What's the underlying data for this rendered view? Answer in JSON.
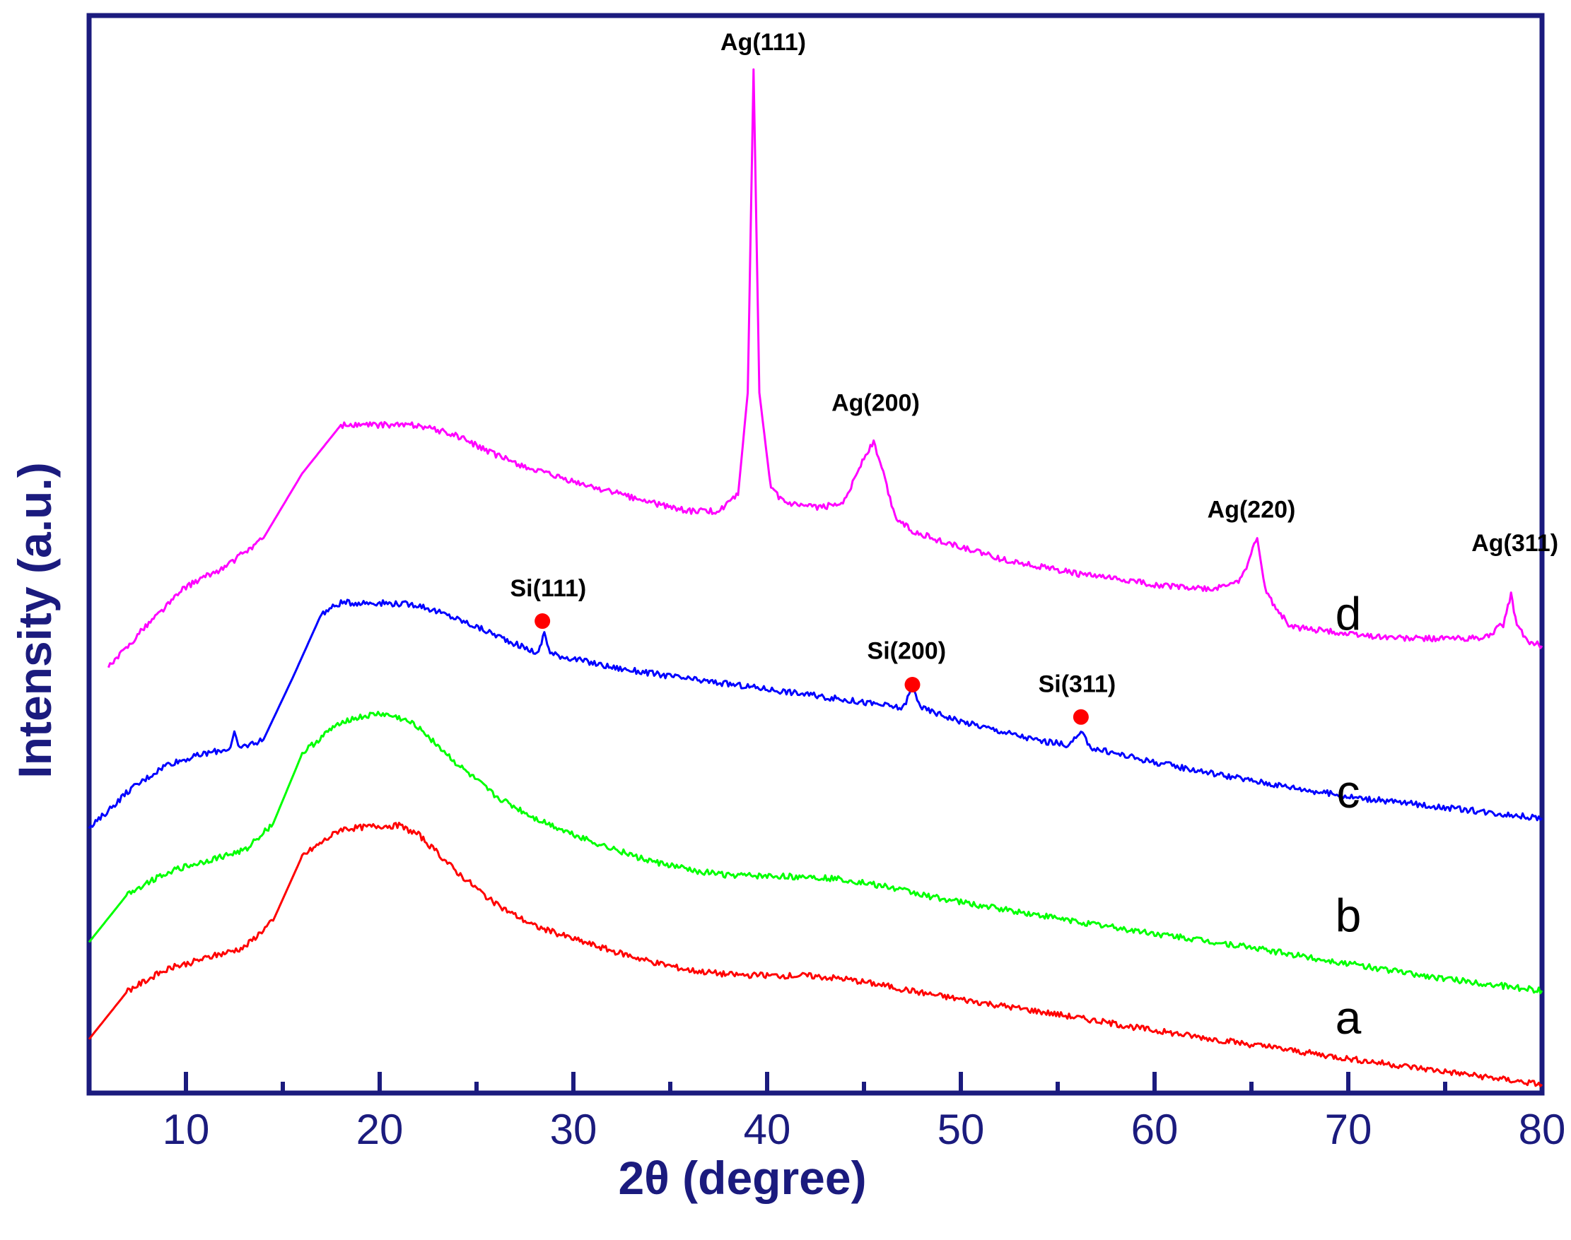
{
  "chart_data": {
    "type": "line",
    "title": "",
    "xlabel": "2θ (degree)",
    "ylabel": "Intensity (a.u.)",
    "xlim": [
      5,
      80
    ],
    "ylim": [
      0,
      100
    ],
    "xticks": [
      10,
      20,
      30,
      40,
      50,
      60,
      70,
      80
    ],
    "minor_xticks": [
      15,
      25,
      35,
      45,
      55,
      65,
      75
    ],
    "grid": false,
    "legend": "none",
    "series": [
      {
        "name": "a",
        "color": "#ff0000",
        "x": [
          5,
          7,
          9,
          11,
          13,
          14.5,
          16,
          18,
          20,
          21,
          22,
          24,
          26,
          28,
          30,
          32,
          34,
          36,
          38,
          40,
          42,
          44,
          46,
          48,
          50,
          55,
          60,
          65,
          70,
          75,
          80
        ],
        "values": [
          5,
          9.5,
          11.5,
          12.5,
          13.5,
          16,
          22,
          24.5,
          24.8,
          24.8,
          24,
          20.5,
          17.5,
          15.5,
          14.3,
          13.2,
          12.2,
          11.4,
          11,
          10.9,
          10.9,
          10.6,
          10,
          9.3,
          8.7,
          7.3,
          5.8,
          4.5,
          3.2,
          2,
          0.8
        ]
      },
      {
        "name": "b",
        "color": "#00ff00",
        "x": [
          5,
          7,
          9,
          11,
          13,
          14.5,
          16,
          18,
          20,
          21,
          22,
          24,
          26,
          28,
          30,
          32,
          34,
          36,
          38,
          40,
          42,
          44,
          46,
          48,
          50,
          55,
          60,
          65,
          70,
          75,
          80
        ],
        "values": [
          14,
          18.5,
          20.5,
          21.5,
          22.5,
          25,
          31.5,
          34.5,
          35.2,
          34.8,
          34,
          30.5,
          27.5,
          25.5,
          24,
          22.7,
          21.5,
          20.7,
          20.2,
          20.1,
          20.1,
          19.8,
          19.2,
          18.4,
          17.7,
          16.2,
          14.8,
          13.5,
          12,
          10.6,
          9.5
        ]
      },
      {
        "name": "c",
        "color": "#0000ff",
        "x": [
          5,
          7,
          9,
          11,
          12.3,
          12.5,
          12.7,
          14,
          15.5,
          17,
          18,
          20,
          22,
          24,
          26,
          27.5,
          28.2,
          28.5,
          28.8,
          29.5,
          32,
          36,
          40,
          44,
          46,
          47,
          47.5,
          48,
          50,
          54,
          55.6,
          56.2,
          56.8,
          60,
          65,
          70,
          75,
          80
        ],
        "values": [
          24.5,
          28,
          30.5,
          31.5,
          32,
          33.5,
          32,
          32.8,
          38.5,
          44.5,
          45.5,
          45.5,
          45.3,
          44,
          42.5,
          41.3,
          40.8,
          42.8,
          40.8,
          40.5,
          39.5,
          38.4,
          37.5,
          36.5,
          36,
          35.7,
          37.6,
          35.7,
          34.5,
          32.7,
          32.3,
          33.4,
          32,
          30.7,
          29,
          27.5,
          26.5,
          25.5
        ]
      },
      {
        "name": "d",
        "color": "#ff00ff",
        "x": [
          6,
          8,
          10,
          12,
          14,
          16,
          18,
          20,
          22,
          24,
          26,
          28,
          30,
          32,
          34,
          36,
          37.5,
          38.5,
          39,
          39.3,
          39.6,
          40.2,
          41,
          42,
          43,
          44,
          45,
          45.5,
          46,
          46.6,
          47.5,
          49,
          52,
          56,
          60,
          63,
          64.5,
          65.3,
          65.7,
          66.1,
          67,
          70,
          73,
          75,
          77,
          78,
          78.4,
          78.7,
          79.2,
          80
        ],
        "values": [
          39.5,
          43.5,
          47,
          48.8,
          51.5,
          57.5,
          62,
          62,
          62,
          61,
          59.2,
          57.8,
          56.7,
          55.8,
          54.8,
          54,
          54,
          55.5,
          65,
          95,
          65,
          56,
          54.7,
          54.4,
          54.4,
          55,
          59,
          60.4,
          57.5,
          53.5,
          52.2,
          51.2,
          49.6,
          48.2,
          47.2,
          46.7,
          47.7,
          51.5,
          46.8,
          45.5,
          43.3,
          42.6,
          42.2,
          42.2,
          42.2,
          43.5,
          46.2,
          43.5,
          42,
          41.5
        ]
      }
    ],
    "peak_markers": [
      {
        "x": 28.4,
        "y": 43.8
      },
      {
        "x": 47.5,
        "y": 37.9
      },
      {
        "x": 56.2,
        "y": 34.9
      }
    ],
    "annotations": [
      {
        "text": "Ag(111)",
        "x": 39.8,
        "y": 96.8
      },
      {
        "text": "Ag(200)",
        "x": 45.6,
        "y": 63.3
      },
      {
        "text": "Ag(220)",
        "x": 65.0,
        "y": 53.4
      },
      {
        "text": "Ag(311)",
        "x": 78.6,
        "y": 50.3
      },
      {
        "text": "Si(111)",
        "x": 28.7,
        "y": 46.1
      },
      {
        "text": "Si(200)",
        "x": 47.2,
        "y": 40.3
      },
      {
        "text": "Si(311)",
        "x": 56.0,
        "y": 37.2
      }
    ],
    "curve_labels": [
      {
        "text": "a",
        "x": 70.0,
        "y": 5.5
      },
      {
        "text": "b",
        "x": 70.0,
        "y": 15.0
      },
      {
        "text": "c",
        "x": 70.0,
        "y": 26.5
      },
      {
        "text": "d",
        "x": 70.0,
        "y": 43.0
      }
    ]
  }
}
